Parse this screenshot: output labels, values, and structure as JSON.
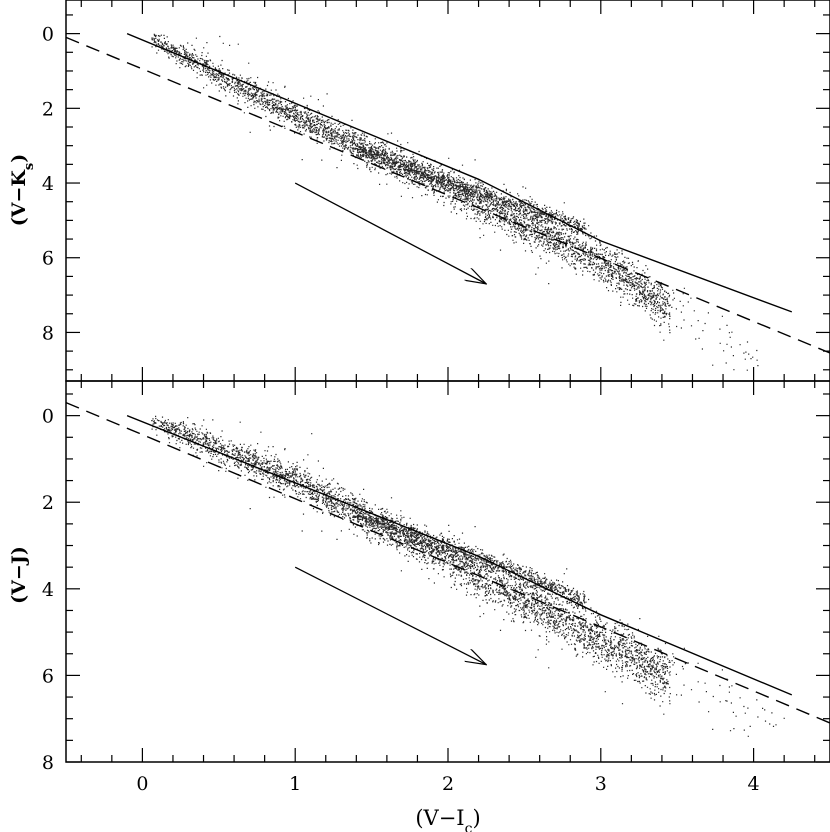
{
  "figure": {
    "xlabel": "(V−I",
    "xlabel_sub": "c",
    "xlabel_close": ")"
  },
  "chart_data": [
    {
      "type": "scatter",
      "panel": "top",
      "title": "",
      "xlabel": "(V−I_c)",
      "ylabel": "(V−K_s)",
      "ylabel_main": "(V−K",
      "ylabel_sub": "s",
      "ylabel_close": ")",
      "xlim": [
        -0.5,
        4.5
      ],
      "ylim": [
        9.3,
        -0.9
      ],
      "y_inverted": true,
      "x_ticks": [
        0,
        1,
        2,
        3,
        4
      ],
      "x_tick_labels": [],
      "y_ticks": [
        0,
        2,
        4,
        6,
        8
      ],
      "y_tick_labels": [
        "0",
        "2",
        "4",
        "6",
        "8"
      ],
      "series": [
        {
          "style": "solid",
          "x": [
            -0.1,
            2.2,
            3.0,
            4.25
          ],
          "y": [
            0.0,
            3.9,
            5.55,
            7.45
          ]
        },
        {
          "style": "dashed",
          "x": [
            -0.5,
            4.5
          ],
          "y": [
            0.1,
            8.55
          ]
        },
        {
          "style": "scatter-cloud",
          "description": "dense point cloud of stars",
          "branch_main": {
            "x": [
              0.0,
              1.0,
              2.0,
              3.0,
              3.6
            ],
            "y": [
              0.0,
              2.2,
              4.1,
              6.1,
              7.8
            ]
          },
          "branch_upper": {
            "x": [
              1.5,
              2.3,
              2.9
            ],
            "y": [
              3.2,
              4.4,
              5.2
            ]
          },
          "x_range": [
            0.0,
            4.3
          ],
          "y_range": [
            0.0,
            9.0
          ]
        },
        {
          "style": "arrow",
          "x": [
            1.0,
            2.25
          ],
          "y": [
            4.0,
            6.7
          ]
        }
      ]
    },
    {
      "type": "scatter",
      "panel": "bottom",
      "title": "",
      "xlabel": "(V−I_c)",
      "ylabel": "(V−J)",
      "ylabel_main": "(V−J)",
      "xlim": [
        -0.5,
        4.5
      ],
      "ylim": [
        8.0,
        -0.8
      ],
      "y_inverted": true,
      "x_ticks": [
        0,
        1,
        2,
        3,
        4
      ],
      "x_tick_labels": [
        "0",
        "1",
        "2",
        "3",
        "4"
      ],
      "y_ticks": [
        0,
        2,
        4,
        6,
        8
      ],
      "y_tick_labels": [
        "0",
        "2",
        "4",
        "6",
        "8"
      ],
      "series": [
        {
          "style": "solid",
          "x": [
            -0.1,
            2.2,
            3.0,
            4.25
          ],
          "y": [
            0.0,
            3.25,
            4.6,
            6.45
          ]
        },
        {
          "style": "dashed",
          "x": [
            -0.5,
            4.5
          ],
          "y": [
            -0.3,
            7.1
          ]
        },
        {
          "style": "scatter-cloud",
          "description": "dense point cloud of stars",
          "branch_main": {
            "x": [
              0.0,
              1.0,
              2.0,
              3.0,
              3.6
            ],
            "y": [
              0.0,
              1.5,
              3.3,
              5.2,
              6.3
            ]
          },
          "branch_upper": {
            "x": [
              1.5,
              2.3,
              2.9
            ],
            "y": [
              2.4,
              3.4,
              4.3
            ]
          },
          "x_range": [
            0.0,
            4.3
          ],
          "y_range": [
            0.0,
            7.4
          ]
        },
        {
          "style": "arrow",
          "x": [
            1.0,
            2.25
          ],
          "y": [
            3.5,
            5.75
          ]
        }
      ]
    }
  ]
}
